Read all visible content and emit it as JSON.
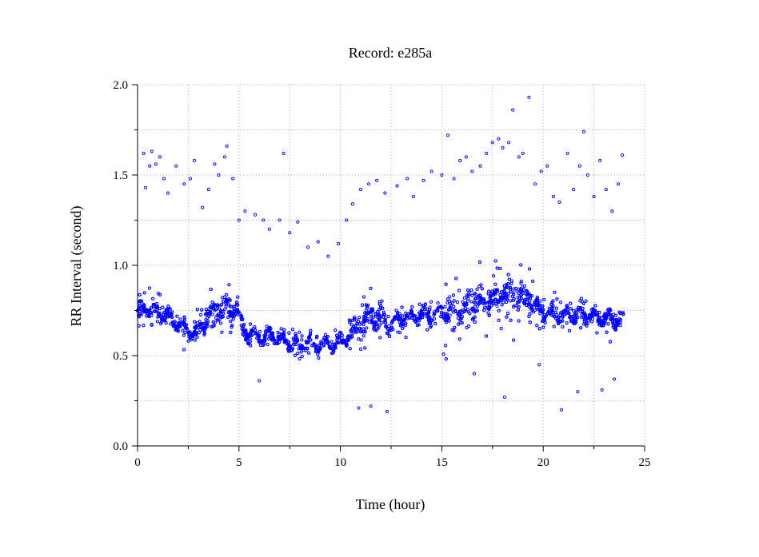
{
  "chart_data": {
    "type": "scatter",
    "title": "Record:  e285a",
    "xlabel": "Time (hour)",
    "ylabel": "RR Interval (second)",
    "xlim": [
      0,
      25
    ],
    "ylim": [
      0.0,
      2.0
    ],
    "x_ticks": [
      0,
      5,
      10,
      15,
      20,
      25
    ],
    "x_tick_labels": [
      "0",
      "5",
      "10",
      "15",
      "20",
      "25"
    ],
    "y_ticks": [
      0.0,
      0.5,
      1.0,
      1.5,
      2.0
    ],
    "y_tick_labels": [
      "0.0",
      "0.5",
      "1.0",
      "1.5",
      "2.0"
    ],
    "grid": true,
    "marker": "open-circle",
    "color": "#0000ff",
    "series": [
      {
        "trend": [
          [
            0.0,
            0.75
          ],
          [
            0.5,
            0.76
          ],
          [
            1.0,
            0.74
          ],
          [
            1.5,
            0.72
          ],
          [
            2.0,
            0.68
          ],
          [
            2.5,
            0.64
          ],
          [
            3.0,
            0.62
          ],
          [
            3.5,
            0.72
          ],
          [
            4.0,
            0.77
          ],
          [
            4.5,
            0.76
          ],
          [
            4.9,
            0.76
          ],
          [
            5.1,
            0.66
          ],
          [
            5.5,
            0.62
          ],
          [
            6.0,
            0.6
          ],
          [
            6.5,
            0.61
          ],
          [
            7.0,
            0.6
          ],
          [
            7.5,
            0.57
          ],
          [
            8.0,
            0.55
          ],
          [
            8.5,
            0.57
          ],
          [
            9.0,
            0.56
          ],
          [
            9.5,
            0.56
          ],
          [
            10.0,
            0.57
          ],
          [
            10.5,
            0.62
          ],
          [
            11.0,
            0.68
          ],
          [
            11.5,
            0.72
          ],
          [
            12.0,
            0.71
          ],
          [
            12.4,
            0.66
          ],
          [
            12.8,
            0.71
          ],
          [
            13.5,
            0.71
          ],
          [
            14.0,
            0.72
          ],
          [
            15.0,
            0.74
          ],
          [
            16.0,
            0.77
          ],
          [
            17.0,
            0.79
          ],
          [
            18.0,
            0.84
          ],
          [
            19.0,
            0.83
          ],
          [
            19.5,
            0.78
          ],
          [
            20.0,
            0.74
          ],
          [
            21.0,
            0.72
          ],
          [
            22.0,
            0.72
          ],
          [
            23.0,
            0.71
          ],
          [
            24.0,
            0.7
          ]
        ],
        "outliers": [
          [
            0.3,
            1.62
          ],
          [
            0.4,
            1.43
          ],
          [
            0.6,
            1.55
          ],
          [
            0.7,
            1.63
          ],
          [
            0.9,
            1.56
          ],
          [
            1.1,
            1.6
          ],
          [
            1.3,
            1.48
          ],
          [
            1.5,
            1.4
          ],
          [
            1.9,
            1.55
          ],
          [
            2.3,
            1.45
          ],
          [
            2.6,
            1.48
          ],
          [
            2.8,
            1.58
          ],
          [
            3.2,
            1.32
          ],
          [
            3.5,
            1.42
          ],
          [
            3.8,
            1.56
          ],
          [
            4.0,
            1.5
          ],
          [
            4.3,
            1.6
          ],
          [
            4.4,
            1.66
          ],
          [
            4.7,
            1.48
          ],
          [
            5.0,
            1.25
          ],
          [
            5.3,
            1.3
          ],
          [
            5.8,
            1.28
          ],
          [
            6.2,
            1.25
          ],
          [
            6.5,
            1.2
          ],
          [
            7.0,
            1.25
          ],
          [
            7.2,
            1.62
          ],
          [
            7.5,
            1.18
          ],
          [
            7.9,
            1.24
          ],
          [
            8.4,
            1.1
          ],
          [
            8.9,
            1.13
          ],
          [
            9.4,
            1.05
          ],
          [
            9.9,
            1.12
          ],
          [
            10.3,
            1.25
          ],
          [
            10.6,
            1.34
          ],
          [
            11.0,
            1.42
          ],
          [
            11.4,
            1.45
          ],
          [
            11.8,
            1.47
          ],
          [
            12.2,
            1.4
          ],
          [
            12.8,
            1.44
          ],
          [
            13.3,
            1.48
          ],
          [
            13.6,
            1.38
          ],
          [
            14.1,
            1.47
          ],
          [
            14.5,
            1.52
          ],
          [
            15.0,
            1.5
          ],
          [
            15.3,
            1.72
          ],
          [
            15.6,
            1.48
          ],
          [
            15.9,
            1.58
          ],
          [
            16.2,
            1.6
          ],
          [
            16.5,
            1.52
          ],
          [
            16.9,
            1.55
          ],
          [
            17.2,
            1.62
          ],
          [
            17.5,
            1.68
          ],
          [
            17.8,
            1.7
          ],
          [
            18.0,
            1.65
          ],
          [
            18.3,
            1.68
          ],
          [
            18.5,
            1.86
          ],
          [
            18.8,
            1.6
          ],
          [
            19.0,
            1.62
          ],
          [
            19.3,
            1.93
          ],
          [
            19.6,
            1.45
          ],
          [
            19.9,
            1.52
          ],
          [
            20.2,
            1.55
          ],
          [
            20.5,
            1.38
          ],
          [
            20.8,
            1.35
          ],
          [
            21.2,
            1.62
          ],
          [
            21.5,
            1.42
          ],
          [
            21.8,
            1.55
          ],
          [
            22.0,
            1.74
          ],
          [
            22.2,
            1.5
          ],
          [
            22.5,
            1.38
          ],
          [
            22.8,
            1.58
          ],
          [
            23.1,
            1.42
          ],
          [
            23.4,
            1.3
          ],
          [
            23.7,
            1.45
          ],
          [
            23.9,
            1.61
          ],
          [
            10.9,
            0.21
          ],
          [
            11.5,
            0.22
          ],
          [
            12.3,
            0.19
          ],
          [
            18.1,
            0.27
          ],
          [
            20.9,
            0.2
          ],
          [
            21.7,
            0.3
          ],
          [
            22.9,
            0.31
          ],
          [
            23.5,
            0.37
          ],
          [
            6.0,
            0.36
          ],
          [
            16.6,
            0.4
          ],
          [
            19.8,
            0.45
          ]
        ]
      }
    ]
  }
}
